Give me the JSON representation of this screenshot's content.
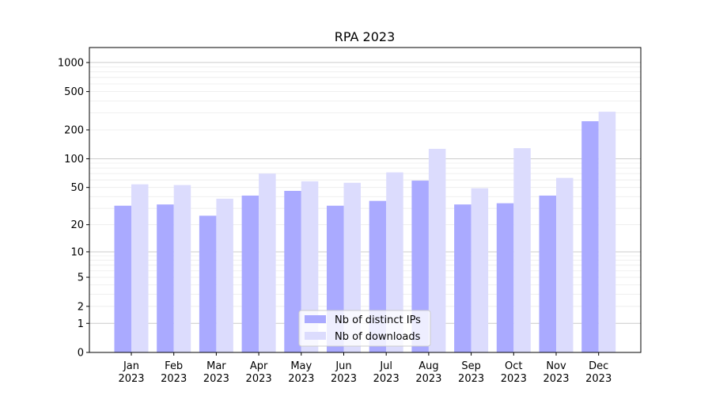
{
  "chart_data": {
    "type": "bar",
    "title": "RPA 2023",
    "xlabel": "",
    "ylabel": "",
    "yscale": "log10(y+1)",
    "ylim": [
      0,
      1430
    ],
    "yticks": [
      0,
      1,
      2,
      5,
      10,
      20,
      50,
      100,
      200,
      500,
      1000
    ],
    "ytick_labels": [
      "0",
      "1",
      "2",
      "5",
      "10",
      "20",
      "50",
      "100",
      "200",
      "500",
      "1000"
    ],
    "grid": true,
    "categories": [
      "Jan\n2023",
      "Feb\n2023",
      "Mar\n2023",
      "Apr\n2023",
      "May\n2023",
      "Jun\n2023",
      "Jul\n2023",
      "Aug\n2023",
      "Sep\n2023",
      "Oct\n2023",
      "Nov\n2023",
      "Dec\n2023"
    ],
    "series": [
      {
        "name": "Nb of distinct IPs",
        "color": "#aaaaff",
        "values": [
          32,
          33,
          25,
          41,
          46,
          32,
          36,
          59,
          33,
          34,
          41,
          246
        ]
      },
      {
        "name": "Nb of downloads",
        "color": "#dcdcfd",
        "values": [
          54,
          53,
          38,
          70,
          58,
          56,
          72,
          127,
          49,
          129,
          63,
          309
        ]
      }
    ],
    "legend": "bottom-center"
  }
}
